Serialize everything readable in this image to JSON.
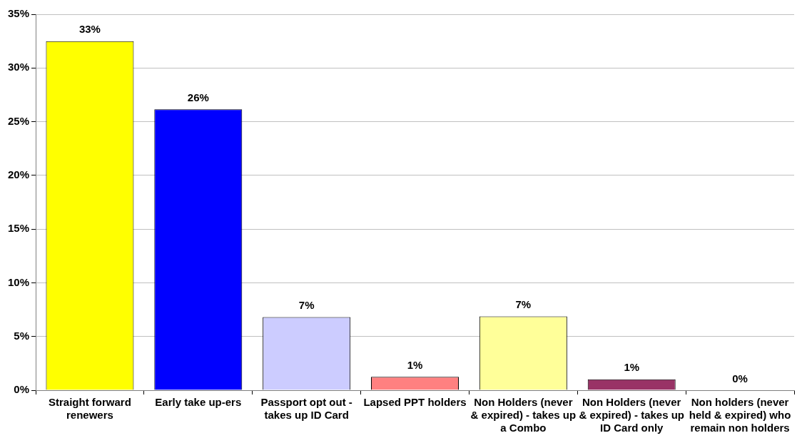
{
  "chart_data": {
    "type": "bar",
    "categories": [
      "Straight forward renewers",
      "Early take up-ers",
      "Passport opt out - takes up ID Card",
      "Lapsed PPT holders",
      "Non Holders (never & expired) - takes up a Combo",
      "Non Holders (never & expired) - takes up ID Card only",
      "Non holders (never held & expired) who remain non holders"
    ],
    "values": [
      32.5,
      26.15,
      6.8,
      1.24,
      6.87,
      1.02,
      0
    ],
    "colors": [
      "#ffff00",
      "#0000ff",
      "#ccccff",
      "#ff8080",
      "#ffff99",
      "#993366",
      "#ffffff"
    ],
    "value_labels": [
      "33%",
      "26%",
      "7%",
      "1%",
      "7%",
      "1%",
      "0%"
    ],
    "ylim": [
      0,
      35
    ],
    "yticks": [
      {
        "value": 0,
        "label": "0%"
      },
      {
        "value": 5,
        "label": "5%"
      },
      {
        "value": 10,
        "label": "10%"
      },
      {
        "value": 15,
        "label": "15%"
      },
      {
        "value": 20,
        "label": "20%"
      },
      {
        "value": 25,
        "label": "25%"
      },
      {
        "value": 30,
        "label": "30%"
      },
      {
        "value": 35,
        "label": "35%"
      }
    ],
    "grid": "y",
    "legend": false
  }
}
